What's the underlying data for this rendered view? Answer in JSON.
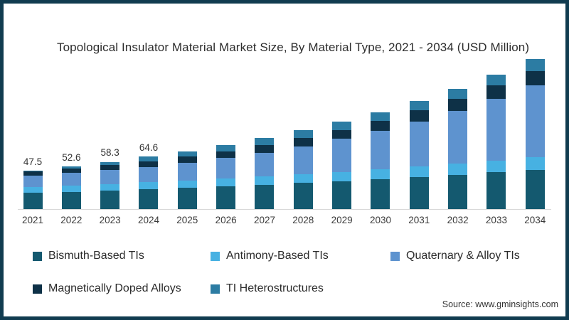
{
  "chart_data": {
    "type": "bar",
    "stacked": true,
    "title": "Topological Insulator Material Market Size, By Material Type, 2021 - 2034 (USD Million)",
    "categories": [
      "2021",
      "2022",
      "2023",
      "2024",
      "2025",
      "2026",
      "2027",
      "2028",
      "2029",
      "2030",
      "2031",
      "2032",
      "2033",
      "2034"
    ],
    "series": [
      {
        "name": "Bismuth-Based TIs",
        "color": "#14596f",
        "values": [
          19.9,
          21.3,
          22.8,
          24.4,
          26.1,
          28.0,
          30.0,
          32.1,
          34.4,
          36.9,
          39.5,
          42.3,
          45.3,
          48.6
        ]
      },
      {
        "name": "Antimony-Based TIs",
        "color": "#47b1e2",
        "values": [
          7.2,
          7.6,
          8.1,
          8.6,
          9.1,
          9.7,
          10.3,
          10.9,
          11.6,
          12.3,
          13.1,
          13.9,
          14.7,
          15.6
        ]
      },
      {
        "name": "Quaternary & Alloy TIs",
        "color": "#5e93cf",
        "values": [
          14.3,
          15.8,
          17.3,
          19.0,
          21.7,
          25.0,
          29.2,
          34.3,
          40.4,
          47.4,
          55.5,
          64.9,
          75.9,
          88.3
        ]
      },
      {
        "name": "Magnetically Doped Alloys",
        "color": "#0e3147",
        "values": [
          4.9,
          5.5,
          6.2,
          7.0,
          7.7,
          8.5,
          9.4,
          10.3,
          11.3,
          12.4,
          13.6,
          14.9,
          16.3,
          17.9
        ]
      },
      {
        "name": "TI Heterostructures",
        "color": "#2c7ca3",
        "values": [
          1.2,
          2.4,
          3.9,
          5.6,
          6.8,
          7.8,
          8.6,
          9.4,
          10.0,
          10.6,
          11.4,
          12.2,
          13.1,
          14.2
        ]
      }
    ],
    "totals": [
      47.5,
      52.6,
      58.3,
      64.6,
      71.4,
      79.0,
      87.5,
      97.0,
      107.7,
      119.6,
      133.1,
      148.2,
      165.3,
      184.6
    ],
    "bar_value_labels": [
      "47.5",
      "52.6",
      "58.3",
      "64.6",
      null,
      null,
      null,
      null,
      null,
      null,
      null,
      null,
      null,
      null
    ],
    "ylim": [
      0,
      200
    ],
    "grid": false,
    "y_axis_visible": false,
    "legend_position": "bottom"
  },
  "source": {
    "label": "Source: www.gminsights.com"
  },
  "frame": {
    "border_color": "#113c50",
    "background": "#ffffff",
    "baseline_color": "#d8d8d8"
  }
}
